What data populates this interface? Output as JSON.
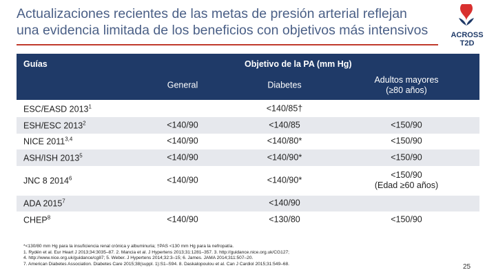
{
  "title": [
    "Actualizaciones recientes de las metas de presión arterial reflejan",
    "una evidencia limitada de los beneficios con objetivos más intensivos"
  ],
  "logo": {
    "top": "ACROSS",
    "bottom": "T2D"
  },
  "table": {
    "header": {
      "guides": "Guías",
      "target": "Objetivo de la PA (mm Hg)",
      "columns": [
        "General",
        "Diabetes",
        [
          "Adultos mayores",
          "(≥80 años)"
        ]
      ]
    },
    "rows": [
      {
        "guide": "ESC/EASD 2013",
        "ref": "1",
        "cells": [
          "<140/85†"
        ]
      },
      {
        "guide": "ESH/ESC 2013",
        "ref": "2",
        "cells": [
          "<140/90",
          "<140/85",
          "<150/90"
        ]
      },
      {
        "guide": "NICE 2011",
        "ref": "3,4",
        "cells": [
          "<140/90",
          "<140/80*",
          "<150/90"
        ]
      },
      {
        "guide": "ASH/ISH 2013",
        "ref": "5",
        "cells": [
          "<140/90",
          "<140/90*",
          "<150/90"
        ]
      },
      {
        "guide": "JNC 8 2014",
        "ref": "6",
        "cells": [
          "<140/90",
          "<140/90*",
          [
            "<150/90",
            "(Edad ≥60 años)"
          ]
        ]
      },
      {
        "guide": "ADA 2015",
        "ref": "7",
        "cells": [
          "<140/90"
        ]
      },
      {
        "guide": "CHEP",
        "ref": "8",
        "cells": [
          "<140/90",
          "<130/80",
          "<150/90"
        ]
      }
    ]
  },
  "footnotes": [
    "*<130/80 mm Hg para la insuficiencia renal crónica y albuminuria; †PAS <130 mm Hg para la nefropatía.",
    "1. Rydén et al. Eur Heart J 2013;34:3035–87. 2. Mancia et al. J Hypertens 2013;31:1281–357. 3. http://guidance.nice.org.uk/CG127;",
    "4. http://www.nice.org.uk/guidance/cg87; 5. Weber. J Hypertens 2014;32:3–15; 6. James. JAMA 2014;311:507–20.",
    "7. American Diabetes Association. Diabetes Care 2015;38(suppl. 1):S1–S94. 8. Daskalopoulou et al. Can J Cardiol 2015;31:549–68."
  ],
  "page_number": "25"
}
